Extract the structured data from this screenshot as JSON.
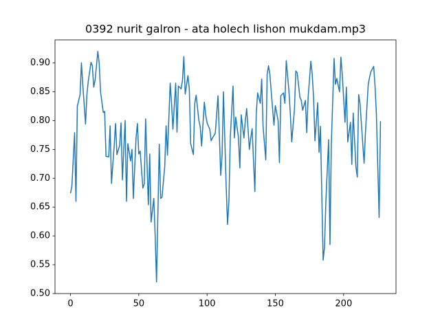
{
  "chart_data": {
    "type": "line",
    "title": "0392 nurit galron - ata holech lishon mukdam.mp3",
    "x": [
      0,
      1,
      3,
      4,
      5,
      7,
      8,
      9,
      11,
      12,
      13,
      15,
      16,
      17,
      18,
      20,
      21,
      22,
      24,
      25,
      26,
      28,
      29,
      30,
      32,
      33,
      34,
      36,
      37,
      38,
      40,
      41,
      42,
      44,
      45,
      46,
      48,
      49,
      50,
      51,
      53,
      54,
      55,
      57,
      58,
      59,
      61,
      62,
      63,
      65,
      66,
      67,
      69,
      70,
      71,
      73,
      74,
      75,
      77,
      78,
      79,
      81,
      82,
      83,
      84,
      86,
      87,
      88,
      90,
      91,
      92,
      94,
      95,
      96,
      98,
      99,
      100,
      102,
      103,
      104,
      106,
      107,
      108,
      110,
      111,
      112,
      114,
      115,
      116,
      117,
      119,
      120,
      121,
      123,
      124,
      125,
      127,
      128,
      129,
      131,
      132,
      133,
      135,
      136,
      137,
      139,
      140,
      141,
      143,
      144,
      145,
      146,
      148,
      149,
      150,
      152,
      153,
      154,
      156,
      157,
      158,
      160,
      161,
      162,
      164,
      165,
      166,
      168,
      169,
      170,
      172,
      173,
      174,
      176,
      177,
      178,
      179,
      181,
      182,
      183,
      185,
      186,
      187,
      189,
      190,
      191,
      193,
      194,
      195,
      197,
      198,
      199,
      201,
      202,
      203,
      205,
      206,
      207,
      209,
      210,
      211,
      212,
      214,
      215,
      216,
      218,
      219,
      220,
      222,
      223,
      224,
      226,
      227
    ],
    "values": [
      0.674,
      0.686,
      0.779,
      0.66,
      0.825,
      0.845,
      0.9,
      0.862,
      0.794,
      0.845,
      0.868,
      0.901,
      0.895,
      0.858,
      0.87,
      0.92,
      0.9,
      0.85,
      0.814,
      0.816,
      0.738,
      0.737,
      0.791,
      0.691,
      0.757,
      0.795,
      0.741,
      0.757,
      0.796,
      0.697,
      0.8,
      0.66,
      0.76,
      0.73,
      0.75,
      0.665,
      0.77,
      0.795,
      0.742,
      0.747,
      0.683,
      0.69,
      0.803,
      0.654,
      0.742,
      0.624,
      0.665,
      0.6,
      0.52,
      0.759,
      0.665,
      0.667,
      0.72,
      0.791,
      0.74,
      0.865,
      0.83,
      0.785,
      0.865,
      0.78,
      0.86,
      0.855,
      0.87,
      0.911,
      0.846,
      0.878,
      0.855,
      0.76,
      0.741,
      0.83,
      0.844,
      0.8,
      0.79,
      0.756,
      0.832,
      0.81,
      0.796,
      0.785,
      0.765,
      0.77,
      0.778,
      0.81,
      0.843,
      0.705,
      0.74,
      0.85,
      0.685,
      0.62,
      0.66,
      0.77,
      0.86,
      0.77,
      0.806,
      0.77,
      0.718,
      0.81,
      0.77,
      0.8,
      0.821,
      0.75,
      0.77,
      0.786,
      0.677,
      0.81,
      0.848,
      0.83,
      0.872,
      0.79,
      0.732,
      0.88,
      0.895,
      0.88,
      0.82,
      0.792,
      0.826,
      0.8,
      0.727,
      0.843,
      0.848,
      0.83,
      0.904,
      0.85,
      0.81,
      0.763,
      0.82,
      0.886,
      0.883,
      0.84,
      0.835,
      0.818,
      0.835,
      0.779,
      0.84,
      0.903,
      0.88,
      0.84,
      0.765,
      0.831,
      0.745,
      0.79,
      0.558,
      0.58,
      0.66,
      0.767,
      0.585,
      0.76,
      0.908,
      0.863,
      0.873,
      0.85,
      0.91,
      0.88,
      0.797,
      0.858,
      0.763,
      0.797,
      0.724,
      0.813,
      0.72,
      0.702,
      0.845,
      0.83,
      0.76,
      0.726,
      0.78,
      0.862,
      0.875,
      0.885,
      0.894,
      0.86,
      0.81,
      0.632,
      0.799
    ],
    "color": "#1f77b4",
    "xlim": [
      -11.35,
      238.35
    ],
    "xticks": [
      0,
      50,
      100,
      150,
      200
    ],
    "ylim": [
      0.5,
      0.94
    ],
    "yticks": [
      {
        "value": 0.5,
        "label": "0.50"
      },
      0.55,
      {
        "value": 0.6,
        "label": "0.60"
      },
      0.65,
      {
        "value": 0.7,
        "label": "0.70"
      },
      0.75,
      {
        "value": 0.8,
        "label": "0.80"
      },
      0.85,
      {
        "value": 0.9,
        "label": "0.90"
      }
    ],
    "grid": false
  }
}
